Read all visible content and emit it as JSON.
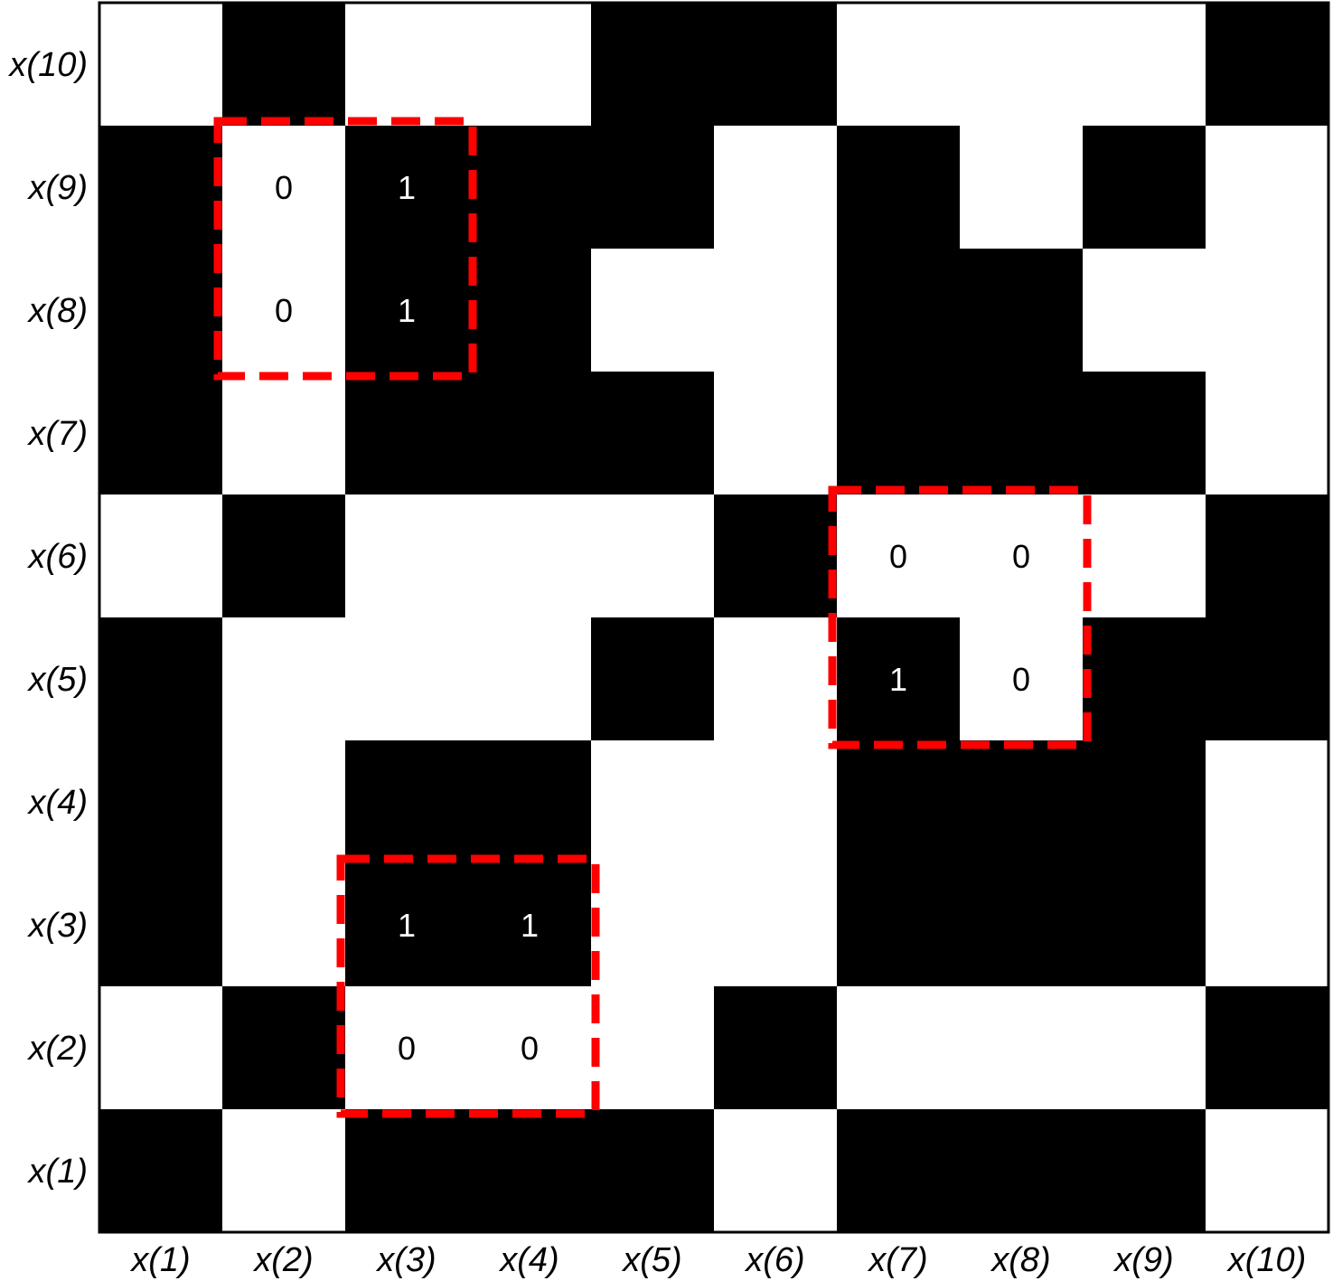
{
  "chart_data": {
    "type": "heatmap",
    "title": "",
    "x_labels": [
      "x(1)",
      "x(2)",
      "x(3)",
      "x(4)",
      "x(5)",
      "x(6)",
      "x(7)",
      "x(8)",
      "x(9)",
      "x(10)"
    ],
    "y_labels": [
      "x(1)",
      "x(2)",
      "x(3)",
      "x(4)",
      "x(5)",
      "x(6)",
      "x(7)",
      "x(8)",
      "x(9)",
      "x(10)"
    ],
    "y_order": "bottom-to-top",
    "matrix_rows_top_to_bottom": [
      [
        0,
        1,
        0,
        0,
        1,
        1,
        0,
        0,
        0,
        1
      ],
      [
        1,
        0,
        1,
        1,
        1,
        0,
        1,
        0,
        1,
        0
      ],
      [
        1,
        0,
        1,
        1,
        0,
        0,
        1,
        1,
        0,
        0
      ],
      [
        1,
        0,
        1,
        1,
        1,
        0,
        1,
        1,
        1,
        0
      ],
      [
        0,
        1,
        0,
        0,
        0,
        1,
        0,
        0,
        0,
        1
      ],
      [
        1,
        0,
        0,
        0,
        1,
        0,
        1,
        0,
        1,
        1
      ],
      [
        1,
        0,
        1,
        1,
        0,
        0,
        1,
        1,
        1,
        0
      ],
      [
        1,
        0,
        1,
        1,
        0,
        0,
        1,
        1,
        1,
        0
      ],
      [
        0,
        1,
        0,
        0,
        0,
        1,
        0,
        0,
        0,
        1
      ],
      [
        1,
        0,
        1,
        1,
        1,
        0,
        1,
        1,
        1,
        0
      ]
    ],
    "color_map": {
      "0": "#ffffff",
      "1": "#000000"
    },
    "highlighted_blocks": [
      {
        "columns": [
          "x(2)",
          "x(3)"
        ],
        "rows_top_to_bottom": [
          "x(9)",
          "x(8)"
        ],
        "values": [
          [
            "0",
            "1"
          ],
          [
            "0",
            "1"
          ]
        ]
      },
      {
        "columns": [
          "x(7)",
          "x(8)"
        ],
        "rows_top_to_bottom": [
          "x(6)",
          "x(5)"
        ],
        "values": [
          [
            "0",
            "0"
          ],
          [
            "1",
            "0"
          ]
        ]
      },
      {
        "columns": [
          "x(3)",
          "x(4)"
        ],
        "rows_top_to_bottom": [
          "x(3)",
          "x(2)"
        ],
        "values": [
          [
            "1",
            "1"
          ],
          [
            "0",
            "0"
          ]
        ]
      }
    ],
    "highlight_color": "#ff0000",
    "grid": false,
    "legend": "none"
  }
}
